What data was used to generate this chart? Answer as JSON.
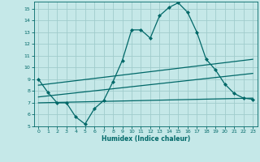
{
  "xlabel": "Humidex (Indice chaleur)",
  "background_color": "#c5e8e8",
  "grid_color": "#a0cccc",
  "line_color": "#006868",
  "xlim": [
    -0.5,
    23.5
  ],
  "ylim": [
    5,
    15.6
  ],
  "xticks": [
    0,
    1,
    2,
    3,
    4,
    5,
    6,
    7,
    8,
    9,
    10,
    11,
    12,
    13,
    14,
    15,
    16,
    17,
    18,
    19,
    20,
    21,
    22,
    23
  ],
  "yticks": [
    5,
    6,
    7,
    8,
    9,
    10,
    11,
    12,
    13,
    14,
    15
  ],
  "line1_x": [
    0,
    1,
    2,
    3,
    4,
    5,
    6,
    7,
    8,
    9,
    10,
    11,
    12,
    13,
    14,
    15,
    16,
    17,
    18,
    19,
    20,
    21,
    22,
    23
  ],
  "line1_y": [
    9.0,
    7.9,
    7.0,
    7.0,
    5.8,
    5.2,
    6.5,
    7.2,
    8.8,
    10.6,
    13.2,
    13.2,
    12.5,
    14.4,
    15.1,
    15.5,
    14.7,
    13.0,
    10.7,
    9.8,
    8.6,
    7.8,
    7.4,
    7.3
  ],
  "line2_x": [
    0,
    23
  ],
  "line2_y": [
    7.5,
    9.5
  ],
  "line3_x": [
    0,
    23
  ],
  "line3_y": [
    7.0,
    7.4
  ],
  "line4_x": [
    0,
    23
  ],
  "line4_y": [
    8.5,
    10.7
  ]
}
